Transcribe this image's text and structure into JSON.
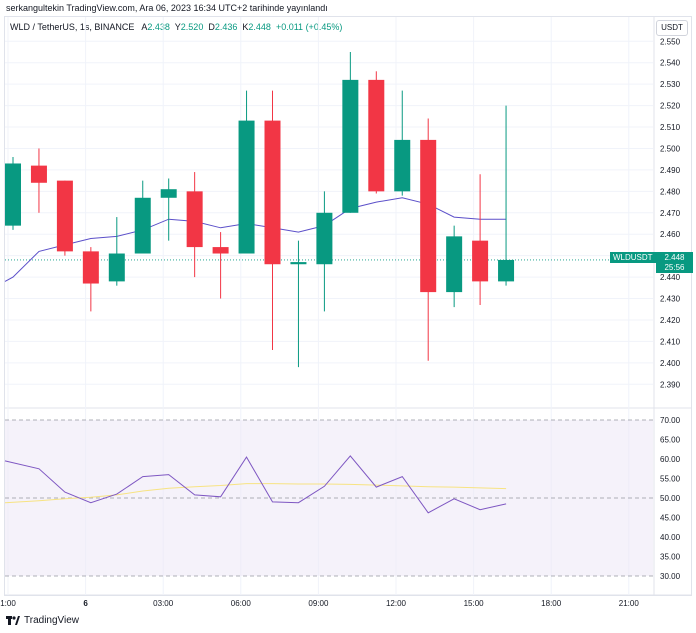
{
  "published": "serkangultekin TradingView.com, Ara 06, 2023 16:34 UTC+2 tarihinde yayınlandı",
  "legend": {
    "symbol": "WLD / TetherUS, 1s, BINANCE",
    "a_label": "A",
    "a_value": "2.438",
    "y_label": "Y",
    "y_value": "2.520",
    "d_label": "D",
    "d_value": "2.436",
    "k_label": "K",
    "k_value": "2.448",
    "change": "+0.011 (+0.45%)"
  },
  "currency": "USDT",
  "price_tag": {
    "name": "WLDUSDT",
    "value": "2.448",
    "countdown": "25:56"
  },
  "brand": "TradingView",
  "colors": {
    "up": "#089981",
    "down": "#f23645",
    "ma": "#5b4fc9",
    "rsi": "#7e57c2",
    "rsi_ma": "#f7e382",
    "rsi_band": "#ede7f6"
  },
  "chart_data": [
    {
      "type": "candlestick",
      "yticks": [
        "2.550",
        "2.540",
        "2.530",
        "2.520",
        "2.510",
        "2.500",
        "2.490",
        "2.480",
        "2.470",
        "2.460",
        "2.450",
        "2.440",
        "2.430",
        "2.420",
        "2.410",
        "2.400",
        "2.390"
      ],
      "xticks": [
        "1:00",
        "6",
        "03:00",
        "06:00",
        "09:00",
        "12:00",
        "15:00",
        "18:00",
        "21:00"
      ],
      "ylim": [
        2.385,
        2.552
      ],
      "candles": [
        {
          "o": 2.464,
          "h": 2.496,
          "l": 2.462,
          "c": 2.493
        },
        {
          "o": 2.492,
          "h": 2.5,
          "l": 2.47,
          "c": 2.484
        },
        {
          "o": 2.485,
          "h": 2.485,
          "l": 2.45,
          "c": 2.452
        },
        {
          "o": 2.452,
          "h": 2.454,
          "l": 2.424,
          "c": 2.437
        },
        {
          "o": 2.438,
          "h": 2.468,
          "l": 2.436,
          "c": 2.451
        },
        {
          "o": 2.451,
          "h": 2.485,
          "l": 2.451,
          "c": 2.477
        },
        {
          "o": 2.477,
          "h": 2.486,
          "l": 2.457,
          "c": 2.481
        },
        {
          "o": 2.48,
          "h": 2.489,
          "l": 2.44,
          "c": 2.454
        },
        {
          "o": 2.454,
          "h": 2.461,
          "l": 2.43,
          "c": 2.451
        },
        {
          "o": 2.451,
          "h": 2.527,
          "l": 2.451,
          "c": 2.513
        },
        {
          "o": 2.513,
          "h": 2.527,
          "l": 2.406,
          "c": 2.446
        },
        {
          "o": 2.446,
          "h": 2.457,
          "l": 2.398,
          "c": 2.447
        },
        {
          "o": 2.446,
          "h": 2.48,
          "l": 2.424,
          "c": 2.47
        },
        {
          "o": 2.47,
          "h": 2.545,
          "l": 2.47,
          "c": 2.532
        },
        {
          "o": 2.532,
          "h": 2.536,
          "l": 2.479,
          "c": 2.48
        },
        {
          "o": 2.48,
          "h": 2.527,
          "l": 2.478,
          "c": 2.504
        },
        {
          "o": 2.504,
          "h": 2.514,
          "l": 2.401,
          "c": 2.433
        },
        {
          "o": 2.433,
          "h": 2.464,
          "l": 2.426,
          "c": 2.459
        },
        {
          "o": 2.457,
          "h": 2.488,
          "l": 2.427,
          "c": 2.438
        },
        {
          "o": 2.438,
          "h": 2.52,
          "l": 2.436,
          "c": 2.448
        }
      ],
      "ma": [
        2.44,
        2.452,
        2.455,
        2.458,
        2.459,
        2.462,
        2.467,
        2.466,
        2.463,
        2.465,
        2.463,
        2.461,
        2.464,
        2.472,
        2.475,
        2.477,
        2.474,
        2.468,
        2.467,
        2.467
      ]
    },
    {
      "type": "line",
      "yticks": [
        "70.00",
        "65.00",
        "60.00",
        "55.00",
        "50.00",
        "45.00",
        "40.00",
        "35.00",
        "30.00"
      ],
      "ylim": [
        30,
        70
      ],
      "series": [
        {
          "values": [
            59.5,
            57.5,
            51.5,
            48.8,
            51,
            55.5,
            56,
            50.8,
            50.3,
            60.5,
            49,
            48.8,
            53,
            60.8,
            52.8,
            55.5,
            46.2,
            49.8,
            47,
            48.5
          ]
        },
        {
          "values": [
            48.8,
            49.3,
            49.8,
            50.2,
            50.8,
            51.8,
            52.5,
            52.9,
            53.2,
            53.7,
            53.7,
            53.6,
            53.6,
            53.5,
            53.3,
            53.1,
            52.9,
            52.8,
            52.6,
            52.4
          ]
        }
      ]
    }
  ]
}
